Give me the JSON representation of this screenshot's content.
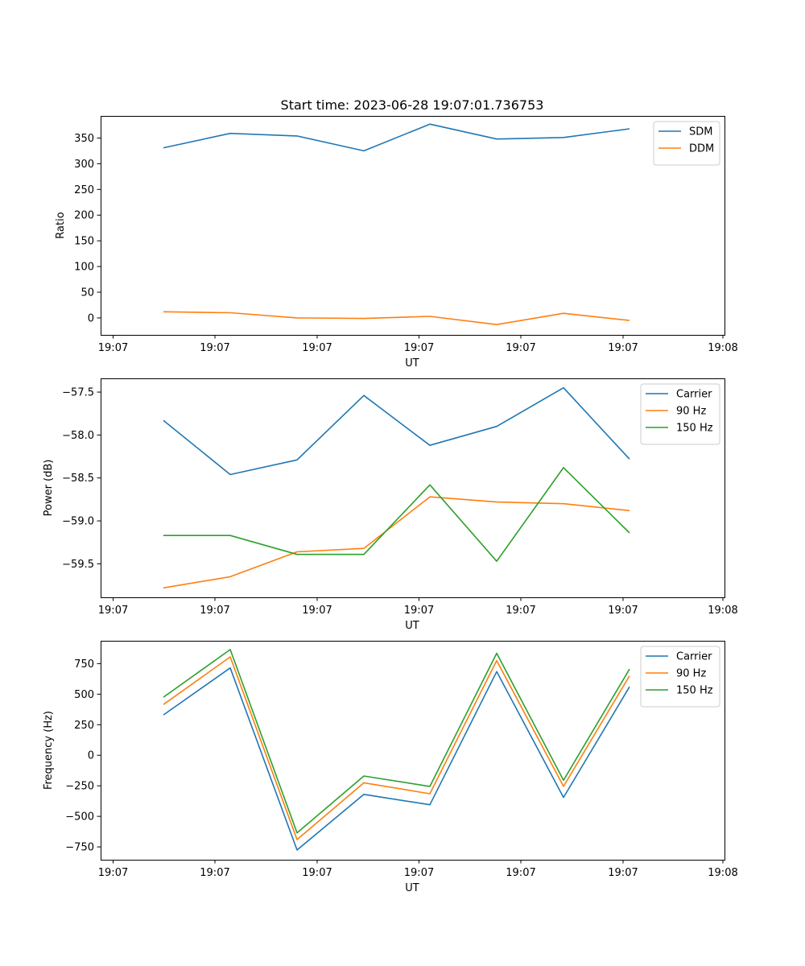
{
  "figure": {
    "title": "Start time: 2023-06-28 19:07:01.736753"
  },
  "colors": {
    "blue": "#1f77b4",
    "orange": "#ff7f0e",
    "green": "#2ca02c"
  },
  "chart_data": [
    {
      "type": "line",
      "title": "Start time: 2023-06-28 19:07:01.736753",
      "xlabel": "UT",
      "ylabel": "Ratio",
      "xtick_labels": [
        "19:07",
        "19:07",
        "19:07",
        "19:07",
        "19:07",
        "19:07",
        "19:08"
      ],
      "ylim": [
        -33,
        393
      ],
      "yticks": [
        0,
        50,
        100,
        150,
        200,
        250,
        300,
        350
      ],
      "yticklabels": [
        "0",
        "50",
        "100",
        "150",
        "200",
        "250",
        "300",
        "350"
      ],
      "grid": false,
      "legend": "top-right",
      "series": [
        {
          "name": "SDM",
          "color": "#1f77b4",
          "values": [
            331,
            359,
            354,
            325,
            377,
            348,
            351,
            368
          ]
        },
        {
          "name": "DDM",
          "color": "#ff7f0e",
          "values": [
            12,
            10,
            0,
            -1,
            3,
            -13,
            9,
            -5
          ]
        }
      ]
    },
    {
      "type": "line",
      "xlabel": "UT",
      "ylabel": "Power (dB)",
      "xtick_labels": [
        "19:07",
        "19:07",
        "19:07",
        "19:07",
        "19:07",
        "19:07",
        "19:08"
      ],
      "ylim": [
        -59.89,
        -57.34
      ],
      "yticks": [
        -59.5,
        -59.0,
        -58.5,
        -58.0,
        -57.5
      ],
      "yticklabels": [
        "−59.5",
        "−59.0",
        "−58.5",
        "−58.0",
        "−57.5"
      ],
      "grid": false,
      "legend": "top-right",
      "series": [
        {
          "name": "Carrier",
          "color": "#1f77b4",
          "values": [
            -57.83,
            -58.46,
            -58.29,
            -57.54,
            -58.12,
            -57.9,
            -57.45,
            -58.28
          ]
        },
        {
          "name": "90 Hz",
          "color": "#ff7f0e",
          "values": [
            -59.78,
            -59.65,
            -59.36,
            -59.32,
            -58.72,
            -58.78,
            -58.8,
            -58.88
          ]
        },
        {
          "name": "150 Hz",
          "color": "#2ca02c",
          "values": [
            -59.17,
            -59.17,
            -59.39,
            -59.39,
            -58.58,
            -59.47,
            -58.38,
            -59.14
          ]
        }
      ]
    },
    {
      "type": "line",
      "xlabel": "UT",
      "ylabel": "Frequency (Hz)",
      "xtick_labels": [
        "19:07",
        "19:07",
        "19:07",
        "19:07",
        "19:07",
        "19:07",
        "19:08"
      ],
      "ylim": [
        -855,
        937
      ],
      "yticks": [
        -750,
        -500,
        -250,
        0,
        250,
        500,
        750
      ],
      "yticklabels": [
        "−750",
        "−500",
        "−250",
        "0",
        "250",
        "500",
        "750"
      ],
      "grid": false,
      "legend": "top-right",
      "series": [
        {
          "name": "Carrier",
          "color": "#1f77b4",
          "values": [
            330,
            715,
            -775,
            -320,
            -405,
            685,
            -345,
            560
          ]
        },
        {
          "name": "90 Hz",
          "color": "#ff7f0e",
          "values": [
            415,
            805,
            -690,
            -225,
            -315,
            775,
            -255,
            650
          ]
        },
        {
          "name": "150 Hz",
          "color": "#2ca02c",
          "values": [
            475,
            865,
            -635,
            -170,
            -255,
            835,
            -205,
            705
          ]
        }
      ]
    }
  ]
}
